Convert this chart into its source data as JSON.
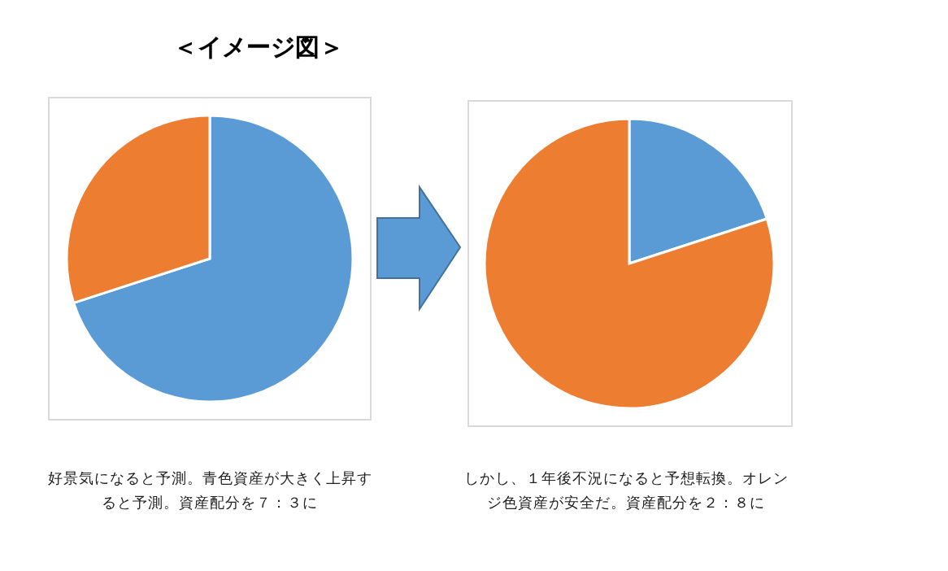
{
  "chart_data": [
    {
      "type": "pie",
      "title": "＜イメージ図＞",
      "categories": [
        null,
        null
      ],
      "values": [
        70,
        30
      ],
      "colors": [
        "#5b9bd5",
        "#ed7d31"
      ],
      "annotations": [
        "好景気になると予測。青色資産が大きく上昇すると予測。資産配分を７：３に"
      ]
    },
    {
      "type": "pie",
      "categories": [
        null,
        null
      ],
      "values": [
        20,
        80
      ],
      "colors": [
        "#5b9bd5",
        "#ed7d31"
      ],
      "annotations": [
        "しかし、１年後不況になると予想転換。オレンジ色資産が安全だ。資産配分を２：８に"
      ]
    }
  ]
}
